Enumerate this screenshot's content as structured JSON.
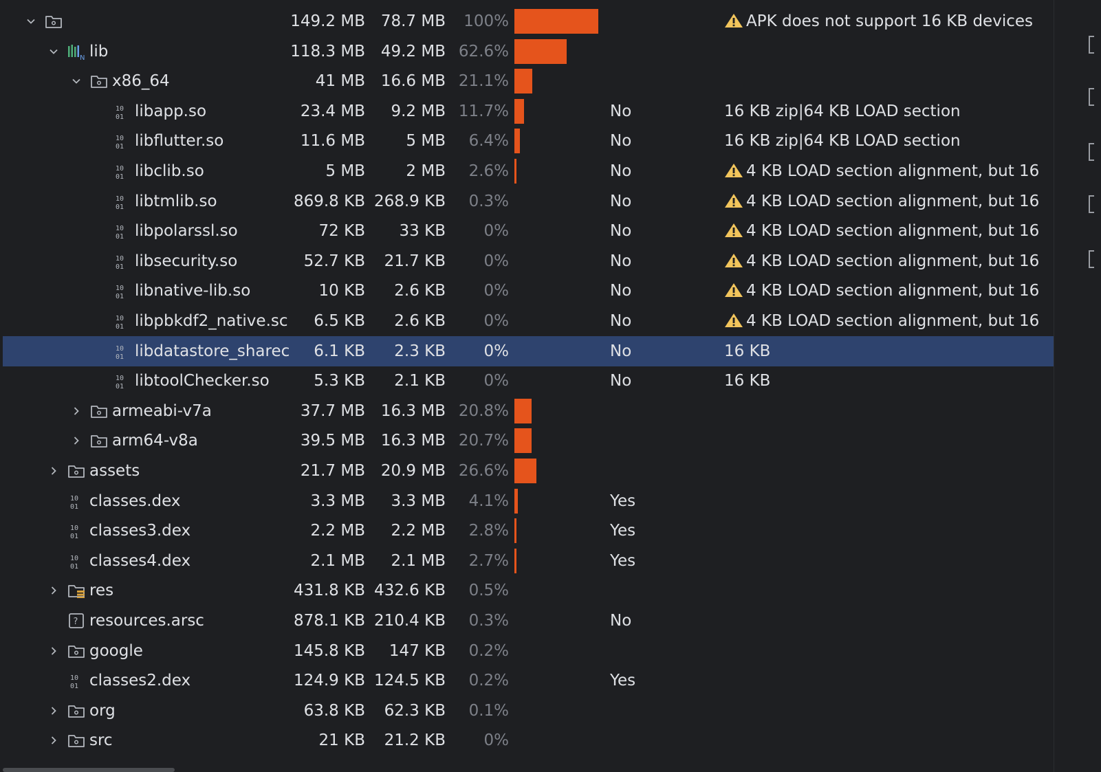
{
  "tree": {
    "rows": [
      {
        "name": "",
        "raw": "149.2 MB",
        "download": "78.7 MB",
        "percent": "100%",
        "compressed": "",
        "note": "APK does not support 16 KB devices",
        "warn": true,
        "icon": "folder-icon",
        "chevron": "expanded",
        "depth": 0,
        "share": 1.0
      },
      {
        "name": "lib",
        "raw": "118.3 MB",
        "download": "49.2 MB",
        "percent": "62.6%",
        "compressed": "",
        "note": "",
        "warn": false,
        "icon": "native-lib-icon",
        "chevron": "expanded",
        "depth": 1,
        "share": 0.626
      },
      {
        "name": "x86_64",
        "raw": "41 MB",
        "download": "16.6 MB",
        "percent": "21.1%",
        "compressed": "",
        "note": "",
        "warn": false,
        "icon": "folder-icon",
        "chevron": "expanded",
        "depth": 2,
        "share": 0.211
      },
      {
        "name": "libapp.so",
        "raw": "23.4 MB",
        "download": "9.2 MB",
        "percent": "11.7%",
        "compressed": "No",
        "note": "16 KB zip|64 KB LOAD section",
        "warn": false,
        "icon": "binary-file-icon",
        "chevron": "none",
        "depth": 3,
        "share": 0.117
      },
      {
        "name": "libflutter.so",
        "raw": "11.6 MB",
        "download": "5 MB",
        "percent": "6.4%",
        "compressed": "No",
        "note": "16 KB zip|64 KB LOAD section",
        "warn": false,
        "icon": "binary-file-icon",
        "chevron": "none",
        "depth": 3,
        "share": 0.064
      },
      {
        "name": "libclib.so",
        "raw": "5 MB",
        "download": "2 MB",
        "percent": "2.6%",
        "compressed": "No",
        "note": "4 KB LOAD section alignment, but 16",
        "warn": true,
        "icon": "binary-file-icon",
        "chevron": "none",
        "depth": 3,
        "share": 0.026
      },
      {
        "name": "libtmlib.so",
        "raw": "869.8 KB",
        "download": "268.9 KB",
        "percent": "0.3%",
        "compressed": "No",
        "note": "4 KB LOAD section alignment, but 16",
        "warn": true,
        "icon": "binary-file-icon",
        "chevron": "none",
        "depth": 3,
        "share": 0.0
      },
      {
        "name": "libpolarssl.so",
        "raw": "72 KB",
        "download": "33 KB",
        "percent": "0%",
        "compressed": "No",
        "note": "4 KB LOAD section alignment, but 16",
        "warn": true,
        "icon": "binary-file-icon",
        "chevron": "none",
        "depth": 3,
        "share": 0.0
      },
      {
        "name": "libsecurity.so",
        "raw": "52.7 KB",
        "download": "21.7 KB",
        "percent": "0%",
        "compressed": "No",
        "note": "4 KB LOAD section alignment, but 16",
        "warn": true,
        "icon": "binary-file-icon",
        "chevron": "none",
        "depth": 3,
        "share": 0.0
      },
      {
        "name": "libnative-lib.so",
        "raw": "10 KB",
        "download": "2.6 KB",
        "percent": "0%",
        "compressed": "No",
        "note": "4 KB LOAD section alignment, but 16",
        "warn": true,
        "icon": "binary-file-icon",
        "chevron": "none",
        "depth": 3,
        "share": 0.0
      },
      {
        "name": "libpbkdf2_native.sc",
        "raw": "6.5 KB",
        "download": "2.6 KB",
        "percent": "0%",
        "compressed": "No",
        "note": "4 KB LOAD section alignment, but 16",
        "warn": true,
        "icon": "binary-file-icon",
        "chevron": "none",
        "depth": 3,
        "share": 0.0
      },
      {
        "name": "libdatastore_sharec",
        "raw": "6.1 KB",
        "download": "2.3 KB",
        "percent": "0%",
        "compressed": "No",
        "note": "16 KB",
        "warn": false,
        "icon": "binary-file-icon",
        "chevron": "none",
        "depth": 3,
        "share": 0.0,
        "selected": true
      },
      {
        "name": "libtoolChecker.so",
        "raw": "5.3 KB",
        "download": "2.1 KB",
        "percent": "0%",
        "compressed": "No",
        "note": "16 KB",
        "warn": false,
        "icon": "binary-file-icon",
        "chevron": "none",
        "depth": 3,
        "share": 0.0
      },
      {
        "name": "armeabi-v7a",
        "raw": "37.7 MB",
        "download": "16.3 MB",
        "percent": "20.8%",
        "compressed": "",
        "note": "",
        "warn": false,
        "icon": "folder-icon",
        "chevron": "collapsed",
        "depth": 2,
        "share": 0.208
      },
      {
        "name": "arm64-v8a",
        "raw": "39.5 MB",
        "download": "16.3 MB",
        "percent": "20.7%",
        "compressed": "",
        "note": "",
        "warn": false,
        "icon": "folder-icon",
        "chevron": "collapsed",
        "depth": 2,
        "share": 0.207
      },
      {
        "name": "assets",
        "raw": "21.7 MB",
        "download": "20.9 MB",
        "percent": "26.6%",
        "compressed": "",
        "note": "",
        "warn": false,
        "icon": "folder-icon",
        "chevron": "collapsed",
        "depth": 1,
        "share": 0.266
      },
      {
        "name": "classes.dex",
        "raw": "3.3 MB",
        "download": "3.3 MB",
        "percent": "4.1%",
        "compressed": "Yes",
        "note": "",
        "warn": false,
        "icon": "binary-file-icon",
        "chevron": "none",
        "depth": 1,
        "share": 0.041
      },
      {
        "name": "classes3.dex",
        "raw": "2.2 MB",
        "download": "2.2 MB",
        "percent": "2.8%",
        "compressed": "Yes",
        "note": "",
        "warn": false,
        "icon": "binary-file-icon",
        "chevron": "none",
        "depth": 1,
        "share": 0.028
      },
      {
        "name": "classes4.dex",
        "raw": "2.1 MB",
        "download": "2.1 MB",
        "percent": "2.7%",
        "compressed": "Yes",
        "note": "",
        "warn": false,
        "icon": "binary-file-icon",
        "chevron": "none",
        "depth": 1,
        "share": 0.027
      },
      {
        "name": "res",
        "raw": "431.8 KB",
        "download": "432.6 KB",
        "percent": "0.5%",
        "compressed": "",
        "note": "",
        "warn": false,
        "icon": "resource-folder-icon",
        "chevron": "collapsed",
        "depth": 1,
        "share": 0.0
      },
      {
        "name": "resources.arsc",
        "raw": "878.1 KB",
        "download": "210.4 KB",
        "percent": "0.3%",
        "compressed": "No",
        "note": "",
        "warn": false,
        "icon": "unknown-file-icon",
        "chevron": "none",
        "depth": 1,
        "share": 0.0
      },
      {
        "name": "google",
        "raw": "145.8 KB",
        "download": "147 KB",
        "percent": "0.2%",
        "compressed": "",
        "note": "",
        "warn": false,
        "icon": "folder-icon",
        "chevron": "collapsed",
        "depth": 1,
        "share": 0.0
      },
      {
        "name": "classes2.dex",
        "raw": "124.9 KB",
        "download": "124.5 KB",
        "percent": "0.2%",
        "compressed": "Yes",
        "note": "",
        "warn": false,
        "icon": "binary-file-icon",
        "chevron": "none",
        "depth": 1,
        "share": 0.0
      },
      {
        "name": "org",
        "raw": "63.8 KB",
        "download": "62.3 KB",
        "percent": "0.1%",
        "compressed": "",
        "note": "",
        "warn": false,
        "icon": "folder-icon",
        "chevron": "collapsed",
        "depth": 1,
        "share": 0.0
      },
      {
        "name": "src",
        "raw": "21 KB",
        "download": "21.2 KB",
        "percent": "0%",
        "compressed": "",
        "note": "",
        "warn": false,
        "icon": "folder-icon",
        "chevron": "collapsed",
        "depth": 1,
        "share": 0.0
      }
    ]
  },
  "colors": {
    "background": "#1e1f22",
    "selection": "#2e436e",
    "bar": "#e5541c",
    "warning": "#f2c55c",
    "text": "#dfe1e5",
    "muted": "#7d8088"
  }
}
